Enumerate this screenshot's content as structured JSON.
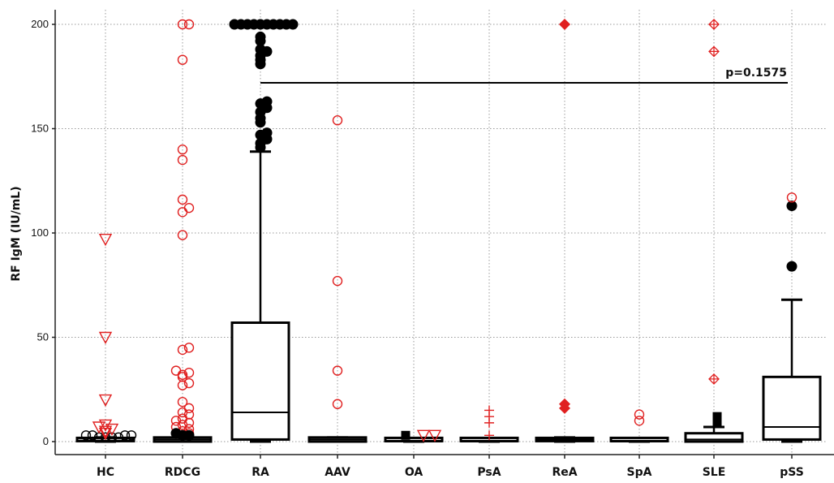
{
  "chart_data": {
    "type": "box",
    "ylabel": "RF IgM (IU/mL)",
    "ylim": [
      -8,
      200
    ],
    "yticks": [
      0,
      50,
      100,
      150,
      200
    ],
    "grid": "dotted",
    "categories": [
      "HC",
      "RDCG",
      "RA",
      "AAV",
      "OA",
      "PsA",
      "ReA",
      "SpA",
      "SLE",
      "pSS"
    ],
    "series": [
      {
        "category": "HC",
        "min": 0,
        "q1": 0,
        "median": 0.5,
        "q3": 1,
        "max": 2,
        "color": "#000000",
        "outliers": [
          {
            "marker": "circle-open",
            "color": "#000000",
            "values": [
              2,
              2,
              2,
              2,
              3,
              3,
              3,
              3
            ]
          },
          {
            "marker": "triangle-down-open",
            "color": "#e02020",
            "values": [
              4,
              5,
              6,
              7,
              8,
              20,
              50,
              97
            ]
          }
        ]
      },
      {
        "category": "RDCG",
        "min": 0,
        "q1": 0,
        "median": 1,
        "q3": 2,
        "max": 3,
        "color": "#000000",
        "outliers": [
          {
            "marker": "circle-open",
            "color": "#e02020",
            "values": [
              3,
              4,
              5,
              6,
              7,
              8,
              9,
              10,
              11,
              13,
              14,
              16,
              19,
              27,
              28,
              31,
              32,
              33,
              34,
              44,
              45,
              99,
              110,
              112,
              116,
              135,
              140,
              183,
              200,
              200
            ]
          },
          {
            "marker": "circle-filled",
            "color": "#000000",
            "values": [
              3,
              3,
              4
            ]
          }
        ]
      },
      {
        "category": "RA",
        "min": 0,
        "q1": 1,
        "median": 14,
        "q3": 57,
        "max": 139,
        "color": "#000000",
        "outliers": [
          {
            "marker": "circle-filled",
            "color": "#000000",
            "values": [
              141,
              143,
              145,
              147,
              148,
              153,
              155,
              158,
              160,
              162,
              163,
              181,
              183,
              185,
              187,
              188,
              192,
              194,
              200,
              200,
              200,
              200,
              200,
              200,
              200,
              200,
              200,
              200
            ]
          }
        ]
      },
      {
        "category": "AAV",
        "min": 0,
        "q1": 0,
        "median": 1,
        "q3": 2,
        "max": 2,
        "color": "#000000",
        "outliers": [
          {
            "marker": "circle-open",
            "color": "#e02020",
            "values": [
              18,
              34,
              77,
              154
            ]
          }
        ]
      },
      {
        "category": "OA",
        "min": 0,
        "q1": 0,
        "median": 0,
        "q3": 1,
        "max": 1,
        "color": "#000000",
        "outliers": [
          {
            "marker": "square-filled",
            "color": "#000000",
            "values": [
              3
            ]
          },
          {
            "marker": "triangle-down-open",
            "color": "#e02020",
            "values": [
              3,
              3
            ]
          }
        ]
      },
      {
        "category": "PsA",
        "min": 0,
        "q1": 0,
        "median": 0,
        "q3": 1,
        "max": 1,
        "color": "#000000",
        "outliers": [
          {
            "marker": "plus",
            "color": "#e02020",
            "values": [
              3,
              9,
              12,
              15
            ]
          }
        ]
      },
      {
        "category": "ReA",
        "min": 0,
        "q1": 0,
        "median": 1,
        "q3": 1,
        "max": 2,
        "color": "#000000",
        "outliers": [
          {
            "marker": "diamond-filled",
            "color": "#e02020",
            "values": [
              16,
              18,
              200
            ]
          }
        ]
      },
      {
        "category": "SpA",
        "min": 0,
        "q1": 0,
        "median": 0,
        "q3": 1,
        "max": 1,
        "color": "#000000",
        "outliers": [
          {
            "marker": "circle-open",
            "color": "#e02020",
            "values": [
              10,
              13
            ]
          }
        ]
      },
      {
        "category": "SLE",
        "min": 0,
        "q1": 0,
        "median": 1,
        "q3": 4,
        "max": 7,
        "color": "#000000",
        "outliers": [
          {
            "marker": "square-filled",
            "color": "#000000",
            "values": [
              9,
              12
            ]
          },
          {
            "marker": "diamond-open-plus",
            "color": "#e02020",
            "values": [
              30,
              187,
              200
            ]
          }
        ]
      },
      {
        "category": "pSS",
        "min": 0,
        "q1": 1,
        "median": 7,
        "q3": 31,
        "max": 68,
        "color": "#000000",
        "outliers": [
          {
            "marker": "circle-filled",
            "color": "#000000",
            "values": [
              84,
              113
            ]
          },
          {
            "marker": "circle-open",
            "color": "#e02020",
            "values": [
              117
            ]
          }
        ]
      }
    ],
    "annotations": [
      {
        "text": "p=0.1575",
        "from": "RA",
        "to": "pSS",
        "y": 172
      }
    ]
  },
  "colors": {
    "accent_red": "#e02020",
    "ink": "#000000",
    "grid": "#9a9a9a"
  }
}
